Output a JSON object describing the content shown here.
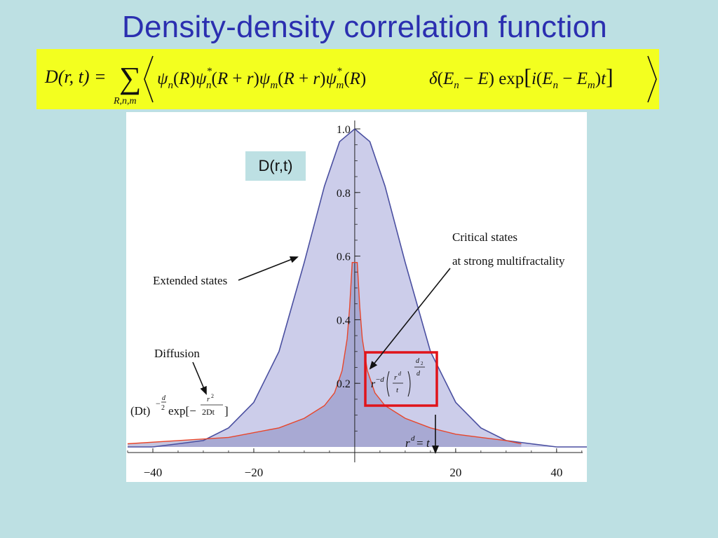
{
  "slide": {
    "title": "Density-density correlation function",
    "formula": {
      "lhs": "D(r,t) =",
      "sum_symbol": "∑",
      "sum_index": "R,n,m",
      "body": "ψ_n(R)ψ*_n(R+r)ψ_m(R+r)ψ*_m(R)   δ(E_n − E) exp[i(E_n − E_m)t]"
    },
    "label_box": "D(r,t)"
  },
  "chart_data": {
    "type": "line",
    "title": "",
    "xlabel": "",
    "ylabel": "",
    "xlim": [
      -45,
      46
    ],
    "ylim": [
      0,
      1.0
    ],
    "x_ticks": [
      -40,
      -20,
      20,
      40
    ],
    "x_tick_labels": [
      "−40",
      "−20",
      "20",
      "40"
    ],
    "y_ticks": [
      0.2,
      0.4,
      0.6,
      0.8,
      1.0
    ],
    "y_tick_labels": [
      "0.2",
      "0.4",
      "0.6",
      "0.8",
      "1.0"
    ],
    "series": [
      {
        "key": "extended",
        "color": "#4a4fa0",
        "fill": "#c7c8e8",
        "x": [
          -45,
          -40,
          -35,
          -30,
          -25,
          -20,
          -15,
          -10,
          -6,
          -3,
          0,
          3,
          6,
          10,
          15,
          20,
          25,
          30,
          35,
          40,
          46
        ],
        "y": [
          0.0,
          0.0,
          0.01,
          0.02,
          0.06,
          0.14,
          0.3,
          0.58,
          0.82,
          0.96,
          1.0,
          0.96,
          0.82,
          0.58,
          0.3,
          0.14,
          0.06,
          0.02,
          0.01,
          0.0,
          0.0
        ]
      },
      {
        "key": "critical",
        "color": "#e8452a",
        "x": [
          -45,
          -35,
          -25,
          -15,
          -10,
          -6,
          -4,
          -2.5,
          -1.5,
          -1,
          -0.5,
          0.5,
          1,
          1.5,
          2.5,
          4,
          6,
          10,
          15,
          20,
          25,
          30,
          33
        ],
        "y": [
          0.01,
          0.02,
          0.03,
          0.06,
          0.09,
          0.13,
          0.17,
          0.24,
          0.34,
          0.44,
          0.58,
          0.58,
          0.44,
          0.34,
          0.24,
          0.17,
          0.13,
          0.09,
          0.06,
          0.04,
          0.03,
          0.02,
          0.01
        ]
      }
    ],
    "annotations": {
      "extended": "Extended states",
      "critical_line1": "Critical states",
      "critical_line2": "at strong multifractality",
      "diffusion": "Diffusion",
      "diffusion_formula": "(Dt)^(−d/2) exp[− r²/2Dt]",
      "power_law_formula": "r^(−d) (r^d / t)^(d₂/d)",
      "crossover_formula": "r^d = t"
    },
    "highlight_color": "#e0141a"
  }
}
